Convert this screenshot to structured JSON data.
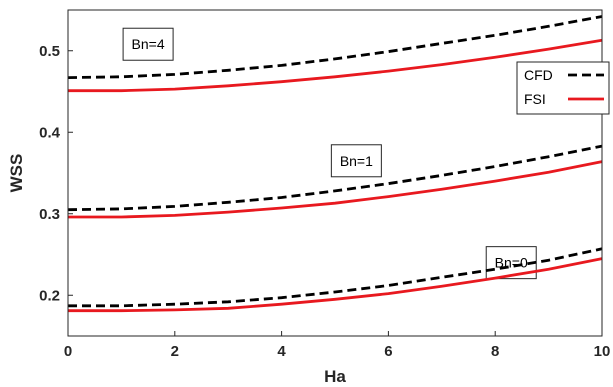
{
  "chart_data": {
    "type": "line",
    "title": "",
    "xlabel": "Ha",
    "ylabel": "WSS",
    "xlim": [
      0,
      10
    ],
    "ylim": [
      0.15,
      0.55
    ],
    "xticks": [
      0,
      2,
      4,
      6,
      8,
      10
    ],
    "yticks": [
      0.2,
      0.3,
      0.4,
      0.5
    ],
    "grid": false,
    "legend_placement": "right",
    "legend": [
      {
        "name": "CFD",
        "color": "#000000",
        "dash": "dashed"
      },
      {
        "name": "FSI",
        "color": "#e8191f",
        "dash": "solid"
      }
    ],
    "x": [
      0,
      1,
      2,
      3,
      4,
      5,
      6,
      7,
      8,
      9,
      10
    ],
    "series": [
      {
        "group": "Bn=4",
        "legend": "CFD",
        "color": "#000000",
        "dash": "dashed",
        "values": [
          0.467,
          0.468,
          0.471,
          0.476,
          0.482,
          0.49,
          0.499,
          0.509,
          0.519,
          0.53,
          0.542
        ]
      },
      {
        "group": "Bn=4",
        "legend": "FSI",
        "color": "#e8191f",
        "dash": "solid",
        "values": [
          0.451,
          0.451,
          0.453,
          0.457,
          0.462,
          0.468,
          0.475,
          0.483,
          0.492,
          0.502,
          0.513
        ]
      },
      {
        "group": "Bn=1",
        "legend": "CFD",
        "color": "#000000",
        "dash": "dashed",
        "values": [
          0.305,
          0.306,
          0.309,
          0.314,
          0.32,
          0.328,
          0.337,
          0.347,
          0.358,
          0.37,
          0.383
        ]
      },
      {
        "group": "Bn=1",
        "legend": "FSI",
        "color": "#e8191f",
        "dash": "solid",
        "values": [
          0.296,
          0.296,
          0.298,
          0.302,
          0.307,
          0.313,
          0.321,
          0.33,
          0.34,
          0.351,
          0.364
        ]
      },
      {
        "group": "Bn=0",
        "legend": "CFD",
        "color": "#000000",
        "dash": "dashed",
        "values": [
          0.187,
          0.187,
          0.189,
          0.192,
          0.197,
          0.204,
          0.212,
          0.222,
          0.232,
          0.243,
          0.257
        ]
      },
      {
        "group": "Bn=0",
        "legend": "FSI",
        "color": "#e8191f",
        "dash": "solid",
        "values": [
          0.181,
          0.181,
          0.182,
          0.184,
          0.189,
          0.195,
          0.202,
          0.211,
          0.221,
          0.232,
          0.245
        ]
      }
    ],
    "annotations": [
      {
        "text": "Bn=4",
        "x": 1.5,
        "y": 0.508
      },
      {
        "text": "Bn=1",
        "x": 5.4,
        "y": 0.365
      },
      {
        "text": "Bn=0",
        "x": 8.3,
        "y": 0.24
      }
    ]
  }
}
